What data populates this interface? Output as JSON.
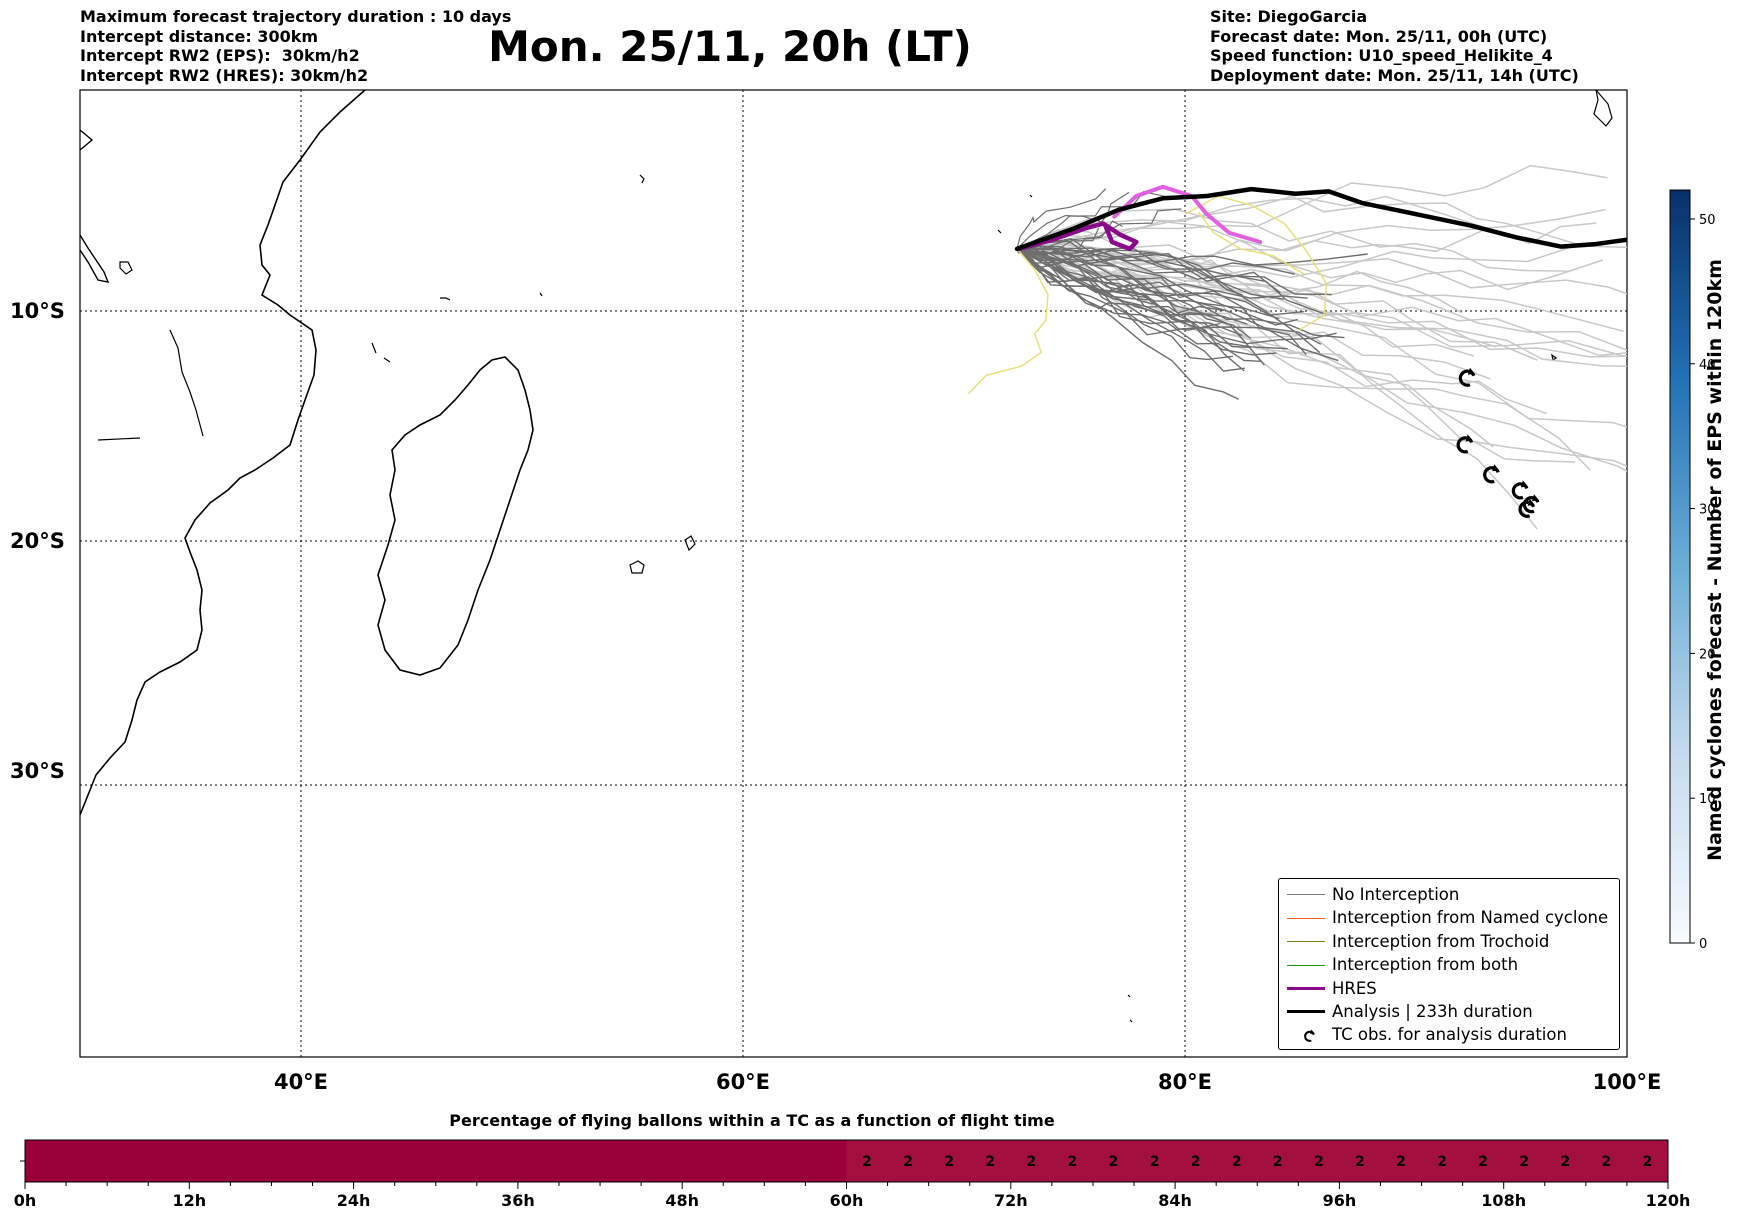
{
  "header": {
    "left_lines": [
      "Maximum forecast trajectory duration : 10 days",
      "Intercept distance: 300km",
      "Intercept RW2 (EPS):  30km/h2",
      "Intercept RW2 (HRES): 30km/h2"
    ],
    "title": "Mon. 25/11, 20h (LT)",
    "right_lines": [
      "Site: DiegoGarcia",
      "Forecast date: Mon. 25/11, 00h (UTC)",
      "Speed function: U10_speed_Helikite_4",
      "Deployment date: Mon. 25/11, 14h (UTC)"
    ]
  },
  "map": {
    "lon_range": [
      30,
      100
    ],
    "lat_range": [
      -42,
      0
    ],
    "lon_ticks": [
      {
        "value": 40,
        "label": "40°E"
      },
      {
        "value": 60,
        "label": "60°E"
      },
      {
        "value": 80,
        "label": "80°E"
      },
      {
        "value": 100,
        "label": "100°E"
      }
    ],
    "lat_ticks": [
      {
        "value": -10,
        "label": "10°S"
      },
      {
        "value": -20,
        "label": "20°S"
      },
      {
        "value": -30,
        "label": "30°S"
      }
    ],
    "gridlines": "dotted",
    "tc_obs_icon": "cyclone-icon",
    "tc_obs_positions": [
      [
        92.8,
        -12.9
      ],
      [
        92.7,
        -15.8
      ],
      [
        93.9,
        -17.1
      ],
      [
        95.2,
        -17.8
      ],
      [
        95.7,
        -18.4
      ],
      [
        95.5,
        -18.6
      ]
    ],
    "analysis_track": [
      [
        72.4,
        -7.3
      ],
      [
        75,
        -6.4
      ],
      [
        77,
        -5.6
      ],
      [
        79,
        -5.1
      ],
      [
        81,
        -5.0
      ],
      [
        83,
        -4.7
      ],
      [
        85,
        -4.9
      ],
      [
        86.5,
        -4.8
      ],
      [
        88,
        -5.3
      ],
      [
        89.5,
        -5.6
      ],
      [
        91,
        -5.9
      ],
      [
        93,
        -6.3
      ],
      [
        95,
        -6.8
      ],
      [
        97,
        -7.2
      ],
      [
        98.5,
        -7.1
      ],
      [
        100,
        -6.9
      ]
    ],
    "hres_track": [
      [
        72.5,
        -7.3
      ],
      [
        74,
        -6.9
      ],
      [
        75.5,
        -6.4
      ],
      [
        76.3,
        -6.2
      ],
      [
        77.1,
        -6.7
      ],
      [
        77.8,
        -7.0
      ],
      [
        77.5,
        -7.3
      ],
      [
        76.7,
        -7.0
      ],
      [
        76.4,
        -6.3
      ]
    ],
    "hres_light_track": [
      [
        76.8,
        -5.9
      ],
      [
        77.8,
        -5.0
      ],
      [
        79.0,
        -4.6
      ],
      [
        80.3,
        -5.0
      ],
      [
        81.0,
        -5.8
      ],
      [
        82.0,
        -6.6
      ],
      [
        83.4,
        -7.0
      ]
    ],
    "colors": {
      "gray_track": "#6e6e6e",
      "light_track": "#c8c8c8",
      "yellow_track": "#e8e07a",
      "hres": "#8b0a8b",
      "hres_light": "#e060e0",
      "analysis": "#000000"
    }
  },
  "legend": {
    "items": [
      {
        "label": "No Interception",
        "color": "#777777",
        "width": 1.2
      },
      {
        "label": "Interception from Named cyclone",
        "color": "#ff5a1f",
        "width": 1.2
      },
      {
        "label": "Interception from Trochoid",
        "color": "#7d7d0a",
        "width": 1.2
      },
      {
        "label": "Interception from both",
        "color": "#1a9e1a",
        "width": 1.2
      },
      {
        "label": "HRES",
        "color": "#8b0a8b",
        "width": 3.5
      },
      {
        "label": "Analysis | 233h duration",
        "color": "#000000",
        "width": 3.5
      },
      {
        "label": "TC obs. for analysis duration",
        "icon": "cyclone-icon"
      }
    ]
  },
  "colorbar": {
    "title": "Named cyclones forecast - Number of EPS within 120km",
    "min": 0,
    "max": 52,
    "ticks": [
      0,
      10,
      20,
      30,
      40,
      50
    ],
    "colormap": "Blues"
  },
  "time_bar": {
    "title": "Percentage of flying ballons within a TC as a function of flight time",
    "tick_labels": [
      "0h",
      "12h",
      "24h",
      "36h",
      "48h",
      "60h",
      "72h",
      "84h",
      "96h",
      "108h",
      "120h"
    ],
    "hour_max": 120,
    "step_hours": 3,
    "first_value_hour": 60,
    "cell_values": [
      "2",
      "2",
      "2",
      "2",
      "2",
      "2",
      "2",
      "2",
      "2",
      "2",
      "2",
      "2",
      "2",
      "2",
      "2",
      "2",
      "2",
      "2",
      "2",
      "2"
    ],
    "color_zero": "#9a0038",
    "color_value": "#a3103f"
  }
}
